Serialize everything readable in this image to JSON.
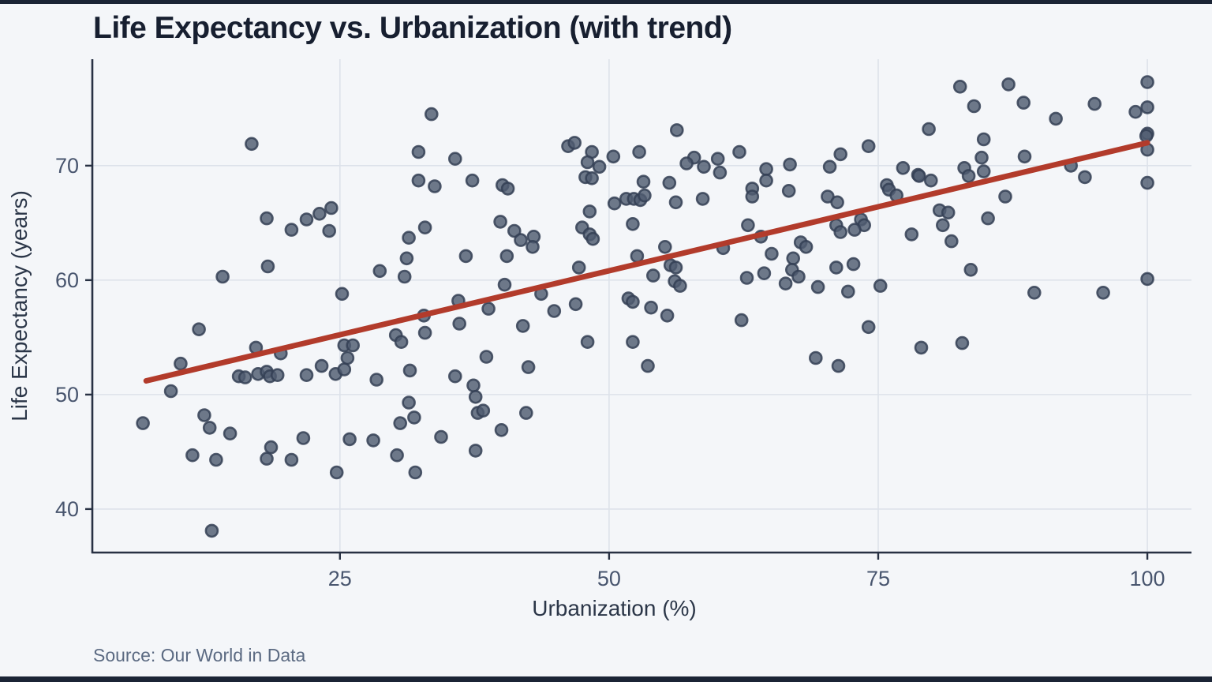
{
  "header": {
    "title": "Life Expectancy vs. Urbanization (with trend)"
  },
  "source": {
    "text": "Source: Our World in Data"
  },
  "colors": {
    "background": "#f4f6f9",
    "frame_bar": "#1b2435",
    "grid": "#dde2ea",
    "axis_line": "#283143",
    "tick_text": "#48556e",
    "point_fill": "#4f5b70",
    "point_stroke": "#343f55",
    "trend": "#b23b2b"
  },
  "chart_data": {
    "type": "scatter",
    "title": "Life Expectancy vs. Urbanization (with trend)",
    "xlabel": "Urbanization (%)",
    "ylabel": "Life Expectancy (years)",
    "x_ticks": [
      25,
      50,
      75,
      100
    ],
    "y_ticks": [
      40,
      50,
      60,
      70
    ],
    "xlim": [
      2.0,
      104.1
    ],
    "ylim": [
      36.2,
      79.3
    ],
    "grid": true,
    "legend_position": "none",
    "trend": {
      "x1": 7.0,
      "y1": 51.2,
      "x2": 100.0,
      "y2": 72.0,
      "color": "#b23b2b"
    },
    "points": [
      [
        16.8,
        71.9
      ],
      [
        18.2,
        65.4
      ],
      [
        20.5,
        64.4
      ],
      [
        21.9,
        65.3
      ],
      [
        23.1,
        65.8
      ],
      [
        24.2,
        66.3
      ],
      [
        24.0,
        64.3
      ],
      [
        18.3,
        61.2
      ],
      [
        14.1,
        60.3
      ],
      [
        25.2,
        58.8
      ],
      [
        33.5,
        74.5
      ],
      [
        32.3,
        71.2
      ],
      [
        35.7,
        70.6
      ],
      [
        32.3,
        68.7
      ],
      [
        33.8,
        68.2
      ],
      [
        37.3,
        68.7
      ],
      [
        40.1,
        68.3
      ],
      [
        40.6,
        68.0
      ],
      [
        46.2,
        71.7
      ],
      [
        46.8,
        72.0
      ],
      [
        48.4,
        71.2
      ],
      [
        48.0,
        70.3
      ],
      [
        49.1,
        69.9
      ],
      [
        47.8,
        69.0
      ],
      [
        48.4,
        68.9
      ],
      [
        50.4,
        70.8
      ],
      [
        52.8,
        71.2
      ],
      [
        50.5,
        66.7
      ],
      [
        51.6,
        67.1
      ],
      [
        52.3,
        67.1
      ],
      [
        52.9,
        67.0
      ],
      [
        53.3,
        67.4
      ],
      [
        48.2,
        66.0
      ],
      [
        52.2,
        64.9
      ],
      [
        47.5,
        64.6
      ],
      [
        48.2,
        64.0
      ],
      [
        48.5,
        63.6
      ],
      [
        39.9,
        65.1
      ],
      [
        41.2,
        64.3
      ],
      [
        41.8,
        63.5
      ],
      [
        43.0,
        63.8
      ],
      [
        42.9,
        62.9
      ],
      [
        32.9,
        64.6
      ],
      [
        31.4,
        63.7
      ],
      [
        31.2,
        61.9
      ],
      [
        31.0,
        60.3
      ],
      [
        28.7,
        60.8
      ],
      [
        36.7,
        62.1
      ],
      [
        40.5,
        62.1
      ],
      [
        47.2,
        61.1
      ],
      [
        40.3,
        59.6
      ],
      [
        43.7,
        58.8
      ],
      [
        36.0,
        58.2
      ],
      [
        38.8,
        57.5
      ],
      [
        46.9,
        57.9
      ],
      [
        51.8,
        58.4
      ],
      [
        52.2,
        58.1
      ],
      [
        52.6,
        62.1
      ],
      [
        56.3,
        73.1
      ],
      [
        74.1,
        71.7
      ],
      [
        62.1,
        71.2
      ],
      [
        71.5,
        71.0
      ],
      [
        57.9,
        70.7
      ],
      [
        57.2,
        70.2
      ],
      [
        60.1,
        70.6
      ],
      [
        58.8,
        69.9
      ],
      [
        60.3,
        69.4
      ],
      [
        64.6,
        69.7
      ],
      [
        66.8,
        70.1
      ],
      [
        70.5,
        69.9
      ],
      [
        77.3,
        69.8
      ],
      [
        78.7,
        69.2
      ],
      [
        64.6,
        68.7
      ],
      [
        55.6,
        68.5
      ],
      [
        53.2,
        68.6
      ],
      [
        63.3,
        68.0
      ],
      [
        66.7,
        67.8
      ],
      [
        63.3,
        67.3
      ],
      [
        56.2,
        66.8
      ],
      [
        58.7,
        67.1
      ],
      [
        70.3,
        67.3
      ],
      [
        71.2,
        66.8
      ],
      [
        75.8,
        68.3
      ],
      [
        76.0,
        67.9
      ],
      [
        76.7,
        67.4
      ],
      [
        62.9,
        64.8
      ],
      [
        73.4,
        65.3
      ],
      [
        73.7,
        64.8
      ],
      [
        71.1,
        64.8
      ],
      [
        71.5,
        64.2
      ],
      [
        72.8,
        64.4
      ],
      [
        78.1,
        64.0
      ],
      [
        64.1,
        63.8
      ],
      [
        60.6,
        62.8
      ],
      [
        55.2,
        62.9
      ],
      [
        67.8,
        63.3
      ],
      [
        68.3,
        62.9
      ],
      [
        65.1,
        62.3
      ],
      [
        67.1,
        61.9
      ],
      [
        55.7,
        61.3
      ],
      [
        56.2,
        61.1
      ],
      [
        54.1,
        60.4
      ],
      [
        67.0,
        60.9
      ],
      [
        67.6,
        60.3
      ],
      [
        64.4,
        60.6
      ],
      [
        62.8,
        60.2
      ],
      [
        66.4,
        59.7
      ],
      [
        71.1,
        61.1
      ],
      [
        72.7,
        61.4
      ],
      [
        56.1,
        59.9
      ],
      [
        56.6,
        59.5
      ],
      [
        69.4,
        59.4
      ],
      [
        75.2,
        59.5
      ],
      [
        72.2,
        59.0
      ],
      [
        82.6,
        76.9
      ],
      [
        87.1,
        77.1
      ],
      [
        83.9,
        75.2
      ],
      [
        88.5,
        75.5
      ],
      [
        91.5,
        74.1
      ],
      [
        95.1,
        75.4
      ],
      [
        100,
        77.3
      ],
      [
        100,
        75.1
      ],
      [
        98.9,
        74.7
      ],
      [
        79.7,
        73.2
      ],
      [
        84.8,
        72.3
      ],
      [
        100,
        72.8
      ],
      [
        99.9,
        72.6
      ],
      [
        100,
        71.4
      ],
      [
        84.6,
        70.7
      ],
      [
        88.6,
        70.8
      ],
      [
        83.0,
        69.8
      ],
      [
        84.8,
        69.5
      ],
      [
        83.4,
        69.1
      ],
      [
        78.8,
        69.1
      ],
      [
        79.9,
        68.7
      ],
      [
        92.9,
        70.0
      ],
      [
        94.2,
        69.0
      ],
      [
        100,
        68.5
      ],
      [
        86.8,
        67.3
      ],
      [
        80.7,
        66.1
      ],
      [
        81.5,
        65.9
      ],
      [
        81.0,
        64.8
      ],
      [
        85.2,
        65.4
      ],
      [
        81.8,
        63.4
      ],
      [
        83.6,
        60.9
      ],
      [
        100,
        60.1
      ],
      [
        89.5,
        58.9
      ],
      [
        95.9,
        58.9
      ],
      [
        11.9,
        55.7
      ],
      [
        10.2,
        52.7
      ],
      [
        9.3,
        50.3
      ],
      [
        6.7,
        47.5
      ],
      [
        17.2,
        54.1
      ],
      [
        19.5,
        53.6
      ],
      [
        15.6,
        51.6
      ],
      [
        16.2,
        51.5
      ],
      [
        17.4,
        51.8
      ],
      [
        18.2,
        52.0
      ],
      [
        18.5,
        51.6
      ],
      [
        19.2,
        51.7
      ],
      [
        21.9,
        51.7
      ],
      [
        23.3,
        52.5
      ],
      [
        24.6,
        51.8
      ],
      [
        25.4,
        52.2
      ],
      [
        25.4,
        54.3
      ],
      [
        26.2,
        54.3
      ],
      [
        25.7,
        53.2
      ],
      [
        12.4,
        48.2
      ],
      [
        12.9,
        47.1
      ],
      [
        14.8,
        46.6
      ],
      [
        11.3,
        44.7
      ],
      [
        13.5,
        44.3
      ],
      [
        18.6,
        45.4
      ],
      [
        18.2,
        44.4
      ],
      [
        20.5,
        44.3
      ],
      [
        21.6,
        46.2
      ],
      [
        25.9,
        46.1
      ],
      [
        24.7,
        43.2
      ],
      [
        13.1,
        38.1
      ],
      [
        30.2,
        55.2
      ],
      [
        30.7,
        54.6
      ],
      [
        32.8,
        56.9
      ],
      [
        32.9,
        55.4
      ],
      [
        36.1,
        56.2
      ],
      [
        42.0,
        56.0
      ],
      [
        44.9,
        57.3
      ],
      [
        48.0,
        54.6
      ],
      [
        52.2,
        54.6
      ],
      [
        38.6,
        53.3
      ],
      [
        42.5,
        52.4
      ],
      [
        31.5,
        52.1
      ],
      [
        35.7,
        51.6
      ],
      [
        28.4,
        51.3
      ],
      [
        37.4,
        50.8
      ],
      [
        37.6,
        49.8
      ],
      [
        31.4,
        49.3
      ],
      [
        31.9,
        48.0
      ],
      [
        30.6,
        47.5
      ],
      [
        37.8,
        48.4
      ],
      [
        38.3,
        48.6
      ],
      [
        42.3,
        48.4
      ],
      [
        40.0,
        46.9
      ],
      [
        34.4,
        46.3
      ],
      [
        28.1,
        46.0
      ],
      [
        30.3,
        44.7
      ],
      [
        37.6,
        45.1
      ],
      [
        32.0,
        43.2
      ],
      [
        53.9,
        57.6
      ],
      [
        55.4,
        56.9
      ],
      [
        62.3,
        56.5
      ],
      [
        74.1,
        55.9
      ],
      [
        69.2,
        53.2
      ],
      [
        71.3,
        52.5
      ],
      [
        53.6,
        52.5
      ],
      [
        79.0,
        54.1
      ],
      [
        82.8,
        54.5
      ]
    ]
  }
}
